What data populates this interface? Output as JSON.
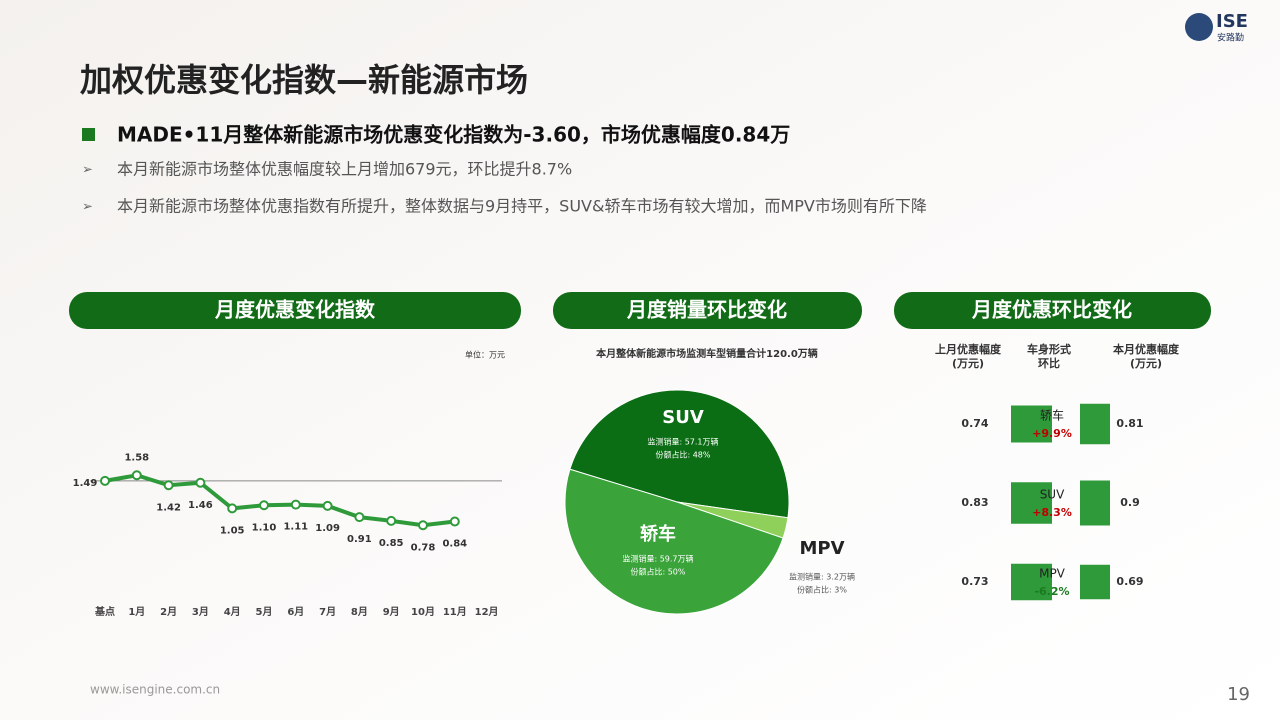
{
  "header": {
    "title": "加权优惠变化指数—新能源市场",
    "logo": "ISE",
    "logo_sub": "安路勤"
  },
  "bullets": {
    "main": "MADE•11月整体新能源市场优惠变化指数为-3.60，市场优惠幅度0.84万",
    "items": [
      "本月新能源市场整体优惠幅度较上月增加679元，环比提升8.7%",
      "本月新能源市场整体优惠指数有所提升，整体数据与9月持平，SUV&轿车市场有较大增加，而MPV市场则有所下降"
    ]
  },
  "footer": {
    "url": "www.isengine.com.cn",
    "page": "19"
  },
  "chart_data": [
    {
      "type": "line",
      "title": "月度优惠变化指数",
      "unit": "单位：万元",
      "color": "#2e9a3a",
      "categories": [
        "基点",
        "1月",
        "2月",
        "3月",
        "4月",
        "5月",
        "6月",
        "7月",
        "8月",
        "9月",
        "10月",
        "11月",
        "12月"
      ],
      "values": [
        1.49,
        1.58,
        1.42,
        1.46,
        1.05,
        1.1,
        1.11,
        1.09,
        0.91,
        0.85,
        0.78,
        0.84,
        null
      ],
      "value_labels": [
        "1.49",
        "1.58",
        "1.42",
        "1.46",
        "1.05",
        "1.10",
        "1.11",
        "1.09",
        "0.91",
        "0.85",
        "0.78",
        "0.84",
        null
      ],
      "ylim": [
        0,
        2
      ]
    },
    {
      "type": "pie",
      "title": "月度销量环比变化",
      "subtitle": "本月整体新能源市场监测车型销量合计120.0万辆",
      "categories": [
        "SUV",
        "MPV",
        "轿车"
      ],
      "values": [
        48,
        3,
        50
      ],
      "colors": [
        "#0b6e14",
        "#8fd05a",
        "#3aa33a"
      ],
      "value_labels": [
        "份额占比: 48%",
        "份额占比: 3%",
        "份额占比: 50%"
      ],
      "sales_labels": [
        "监测销量: 57.1万辆",
        "监测销量: 3.2万辆",
        "监测销量: 59.7万辆"
      ]
    },
    {
      "type": "bar",
      "title": "月度优惠环比变化",
      "color": "#2e9a3a",
      "headers": [
        [
          "上月优惠幅度",
          "(万元)"
        ],
        [
          "车身形式",
          "环比"
        ],
        [
          "本月优惠幅度",
          "(万元)"
        ]
      ],
      "categories": [
        "轿车",
        "SUV",
        "MPV"
      ],
      "series": [
        {
          "name": "上月优惠幅度",
          "values": [
            0.74,
            0.83,
            0.73
          ]
        },
        {
          "name": "本月优惠幅度",
          "values": [
            0.81,
            0.9,
            0.69
          ]
        }
      ],
      "change": {
        "values": [
          9.9,
          8.3,
          -6.2
        ],
        "value_labels": [
          "+9.9%",
          "+8.3%",
          "-6.2%"
        ]
      }
    }
  ]
}
